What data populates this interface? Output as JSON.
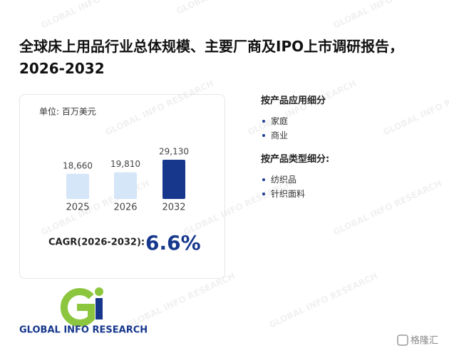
{
  "header": {
    "title": "全球床上用品行业总体规模、主要厂商及IPO上市调研报告，2026-2032"
  },
  "chart_data": {
    "type": "bar",
    "unit": "单位: 百万美元",
    "categories": [
      "2025",
      "2026",
      "2032"
    ],
    "values": [
      18660,
      19810,
      29130
    ],
    "value_labels": [
      "18,660",
      "19,810",
      "29,130"
    ],
    "colors": [
      "#d5e6f8",
      "#d5e6f8",
      "#16378c"
    ]
  },
  "cagr": {
    "label": "CAGR(2026-2032):",
    "value": "6.6%"
  },
  "segments": [
    {
      "title": "按产品应用细分",
      "items": [
        "家庭",
        "商业"
      ]
    },
    {
      "title": "按产品类型细分:",
      "items": [
        "纺织品",
        "针织面料"
      ]
    }
  ],
  "logo": {
    "text": "GLOBAL INFO RESEARCH"
  },
  "source_mark": "格隆汇"
}
